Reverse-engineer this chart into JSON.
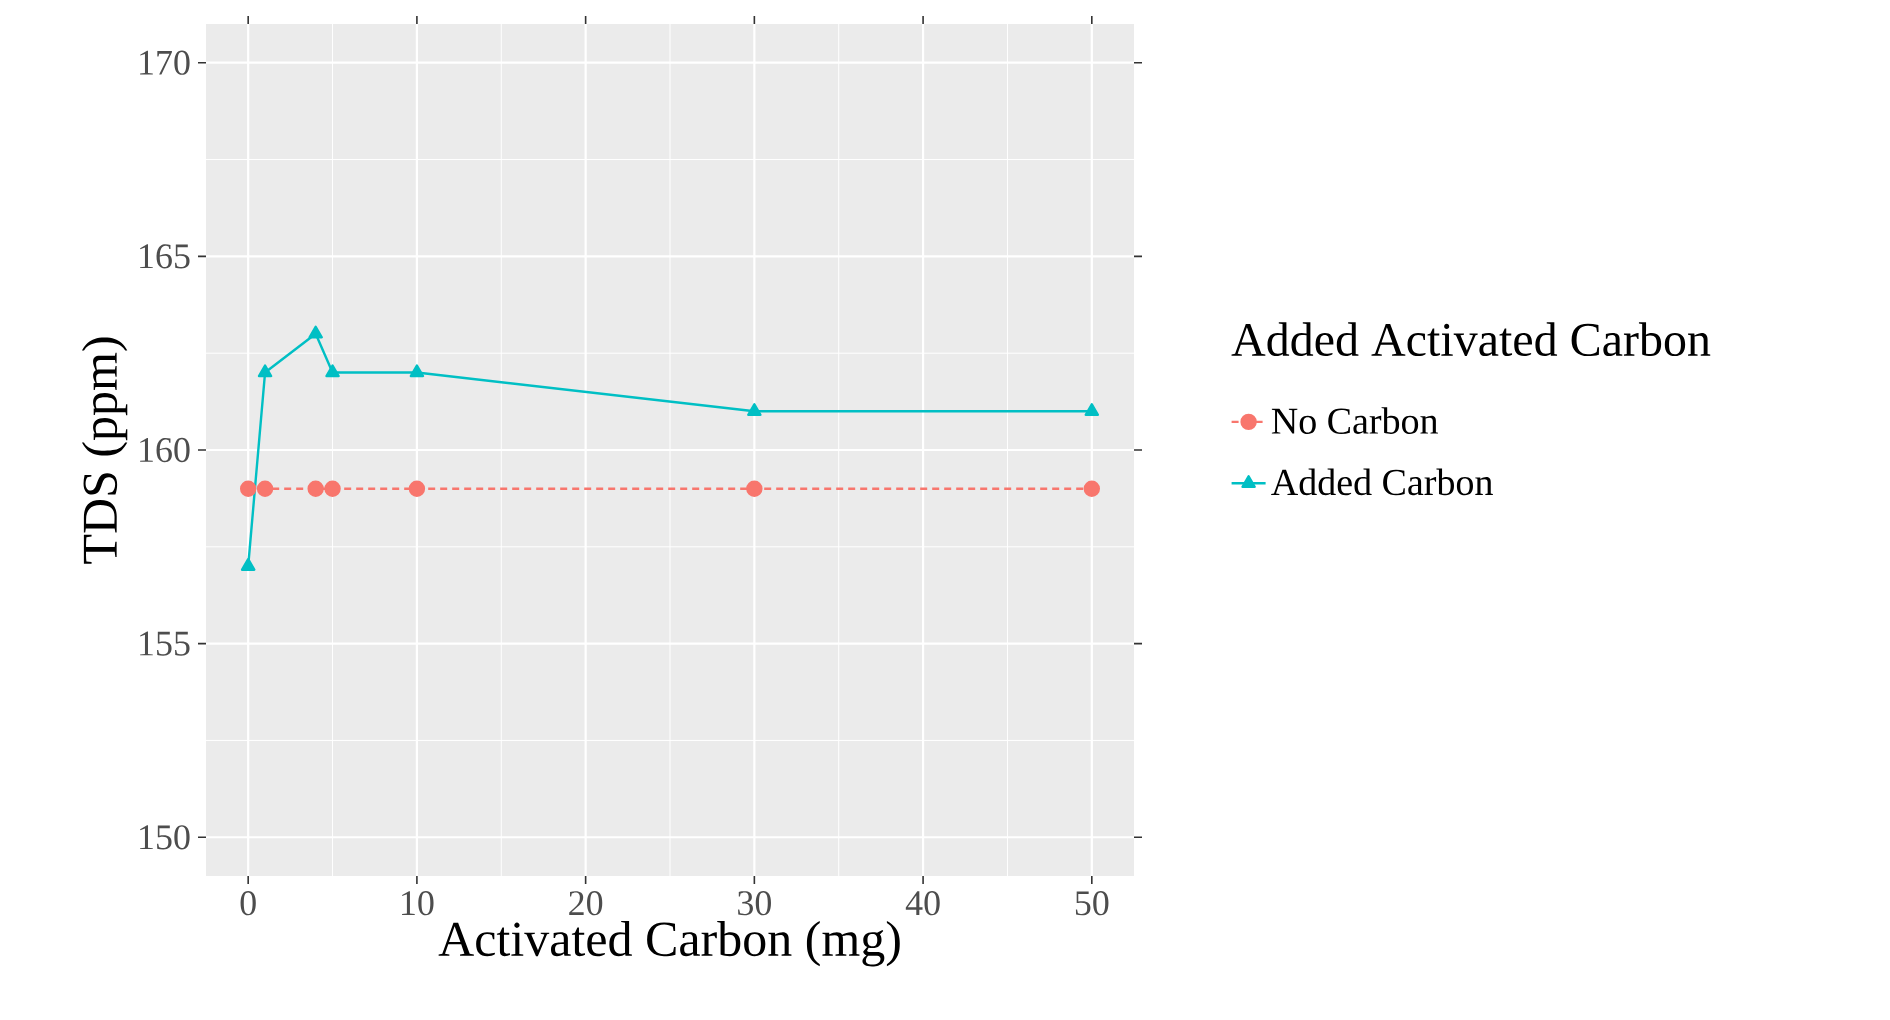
{
  "chart_data": {
    "type": "line",
    "xlabel": "Activated Carbon (mg)",
    "ylabel": "TDS (ppm)",
    "legend_title": "Added Activated Carbon",
    "xlim": [
      -2.5,
      52.5
    ],
    "ylim": [
      149,
      171
    ],
    "xticks": [
      0,
      10,
      20,
      30,
      40,
      50
    ],
    "yticks": [
      150,
      155,
      160,
      165,
      170
    ],
    "grid": true,
    "legend": "right",
    "series": [
      {
        "name": "No Carbon",
        "color": "#f8766d",
        "marker": "circle",
        "line_style": "dashed",
        "x": [
          0,
          1,
          4,
          5,
          10,
          30,
          50
        ],
        "values": [
          159,
          159,
          159,
          159,
          159,
          159,
          159
        ]
      },
      {
        "name": "Added Carbon",
        "color": "#00bfc4",
        "marker": "triangle",
        "line_style": "solid",
        "x": [
          0,
          1,
          4,
          5,
          10,
          30,
          50
        ],
        "values": [
          157,
          162,
          163,
          162,
          162,
          161,
          161
        ]
      }
    ]
  }
}
